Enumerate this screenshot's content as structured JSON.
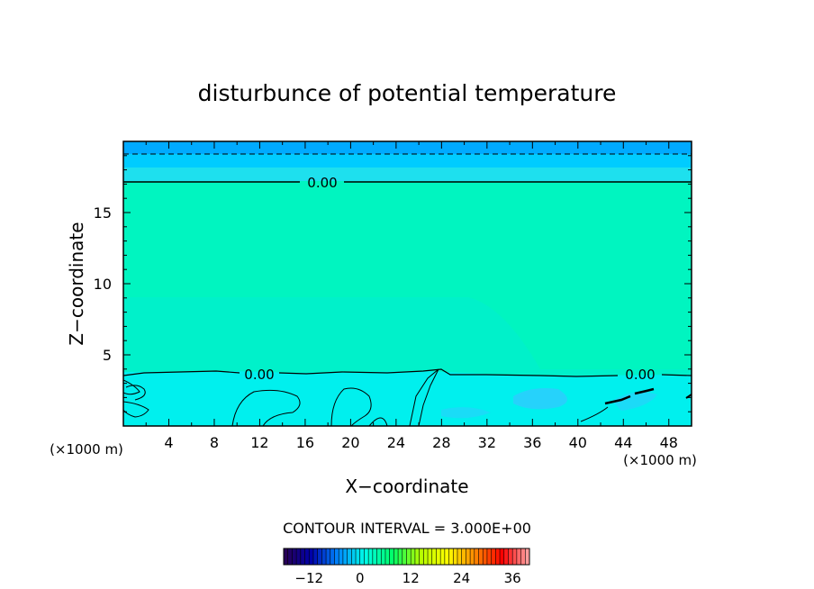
{
  "chart_data": {
    "type": "heatmap",
    "title": "disturbunce of potential temperature",
    "xlabel": "X−coordinate",
    "ylabel": "Z−coordinate",
    "x_unit_left": "(×1000 m)",
    "x_unit_right": "(×1000 m)",
    "xlim": [
      0,
      50
    ],
    "ylim": [
      0,
      20
    ],
    "x_ticks": [
      4,
      8,
      12,
      16,
      20,
      24,
      28,
      32,
      36,
      40,
      44,
      48
    ],
    "x_tick_labels": [
      "4",
      "8",
      "12",
      "16",
      "20",
      "24",
      "28",
      "32",
      "36",
      "40",
      "44",
      "48"
    ],
    "y_ticks": [
      5,
      10,
      15
    ],
    "y_tick_labels": [
      "5",
      "10",
      "15"
    ],
    "x_minor_step": 2,
    "y_minor_step": 1,
    "contour_labels": [
      {
        "text": "0.00",
        "x": 18.5,
        "z": 17
      },
      {
        "text": "0.00",
        "x": 12.2,
        "z": 3.6
      },
      {
        "text": "0.00",
        "x": 45.6,
        "z": 3.5
      }
    ],
    "fill_colors": {
      "top_band": "#00aaff",
      "upper_band": "#00ccff",
      "main": "#00f5c0",
      "lower": "#00f0ee",
      "pocket": "#33c8ff"
    },
    "contour_interval_text": "CONTOUR INTERVAL = 3.000E+00",
    "colorbar": {
      "range": [
        -18,
        40
      ],
      "ticks": [
        -12,
        0,
        12,
        24,
        36
      ],
      "tick_labels": [
        "−12",
        "0",
        "12",
        "24",
        "36"
      ],
      "stops": [
        "#2a0050",
        "#0000aa",
        "#0088ff",
        "#00ffe6",
        "#00ff66",
        "#b4ff00",
        "#ffff00",
        "#ff8800",
        "#ff0000",
        "#ffaaaa"
      ]
    }
  }
}
